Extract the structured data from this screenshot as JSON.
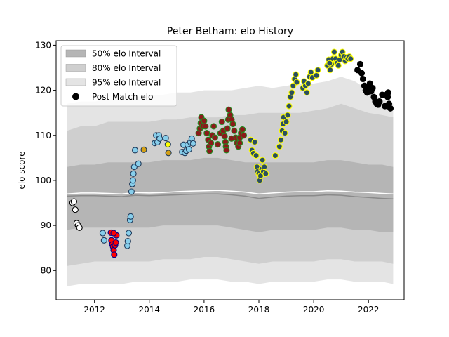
{
  "chart_data": {
    "type": "scatter",
    "title": "Peter Betham: elo History",
    "xlabel": "",
    "ylabel": "elo score",
    "xlim": [
      2010.6,
      2023.3
    ],
    "ylim": [
      73.5,
      131
    ],
    "x_ticks": [
      2012,
      2014,
      2016,
      2018,
      2020,
      2022
    ],
    "y_ticks": [
      80,
      90,
      100,
      110,
      120,
      130
    ],
    "legend": {
      "placement": "top-left",
      "entries": [
        "50% elo Interval",
        "80% elo Interval",
        "95% elo Interval",
        "Post Match elo"
      ]
    },
    "bands": {
      "x": [
        2011.0,
        2011.5,
        2012.0,
        2012.5,
        2013.0,
        2013.5,
        2014.0,
        2014.5,
        2015.0,
        2015.5,
        2016.0,
        2016.5,
        2017.0,
        2017.5,
        2018.0,
        2018.5,
        2019.0,
        2019.5,
        2020.0,
        2020.5,
        2021.0,
        2021.5,
        2022.0,
        2022.5,
        2022.9
      ],
      "p95_hi": [
        117,
        117.5,
        117.5,
        118,
        118.5,
        118.5,
        119,
        119,
        119.5,
        119.5,
        120,
        120,
        120,
        120.5,
        121,
        120.5,
        121,
        121.5,
        121.5,
        122,
        123,
        122,
        120,
        118,
        117
      ],
      "p80_hi": [
        111,
        112,
        112,
        113,
        113,
        113,
        113,
        113.5,
        113.5,
        114,
        114,
        114,
        114.5,
        114.5,
        115,
        115,
        115,
        115,
        115.5,
        116,
        117,
        116,
        115,
        114.5,
        114
      ],
      "p50_hi": [
        103,
        103.5,
        103.5,
        104,
        104,
        104,
        104,
        104.5,
        104.5,
        104.5,
        105,
        105,
        104.5,
        104,
        104,
        104,
        104,
        104,
        104,
        104.5,
        104.5,
        104,
        103.5,
        103.5,
        103
      ],
      "median": [
        97,
        97.2,
        97.2,
        97.1,
        97.0,
        97.3,
        97.2,
        97.3,
        97.5,
        97.6,
        97.7,
        97.8,
        97.6,
        97.4,
        97.0,
        97.2,
        97.4,
        97.5,
        97.5,
        97.7,
        97.6,
        97.4,
        97.3,
        97.1,
        97.0
      ],
      "mean": [
        96.5,
        96.6,
        96.6,
        96.5,
        96.4,
        96.7,
        96.6,
        96.7,
        96.8,
        96.9,
        97.0,
        97.0,
        96.8,
        96.5,
        96.0,
        96.3,
        96.5,
        96.6,
        96.6,
        96.8,
        96.7,
        96.4,
        96.2,
        96.0,
        95.9
      ],
      "p50_lo": [
        89,
        89.5,
        89.5,
        89.5,
        89.5,
        89.5,
        89.5,
        90,
        90,
        90,
        90,
        90,
        89.5,
        89,
        88.5,
        89,
        89,
        89,
        89,
        89.5,
        89.5,
        89,
        89,
        88.5,
        88.5
      ],
      "p80_lo": [
        81,
        81.5,
        82,
        82,
        82,
        82,
        82,
        82.5,
        82.5,
        82.5,
        83,
        83,
        82.5,
        82,
        81.5,
        82,
        82,
        82,
        82,
        82.5,
        82.5,
        82,
        82,
        82,
        81.5
      ],
      "p95_lo": [
        76.5,
        77,
        77,
        77,
        77,
        77.5,
        77.5,
        77.5,
        77.5,
        78,
        78,
        78,
        77.5,
        77.5,
        77,
        77.5,
        77.5,
        77.5,
        77.5,
        78,
        78,
        77.5,
        77.5,
        77.5,
        77
      ]
    },
    "series": [
      {
        "face": "#ffffff",
        "edge": "#000000",
        "points": [
          [
            2011.2,
            95.0
          ],
          [
            2011.25,
            95.3
          ],
          [
            2011.3,
            93.5
          ],
          [
            2011.35,
            90.5
          ],
          [
            2011.4,
            90.0
          ],
          [
            2011.45,
            89.5
          ]
        ]
      },
      {
        "face": "#87ceeb",
        "edge": "#1f3a5a",
        "points": [
          [
            2012.3,
            88.3
          ],
          [
            2012.35,
            86.7
          ],
          [
            2013.2,
            85.5
          ],
          [
            2013.25,
            88.3
          ],
          [
            2013.22,
            86.5
          ],
          [
            2013.3,
            91.2
          ],
          [
            2013.32,
            92.0
          ],
          [
            2013.35,
            97.5
          ],
          [
            2013.38,
            99.2
          ],
          [
            2013.4,
            100.0
          ],
          [
            2013.42,
            101.5
          ],
          [
            2013.45,
            103.0
          ],
          [
            2013.48,
            106.7
          ],
          [
            2013.6,
            103.7
          ],
          [
            2014.2,
            108.3
          ],
          [
            2014.25,
            110.0
          ],
          [
            2014.3,
            108.5
          ],
          [
            2014.35,
            110.0
          ],
          [
            2014.38,
            109.3
          ],
          [
            2014.6,
            109.4
          ],
          [
            2015.2,
            106.3
          ],
          [
            2015.25,
            107.9
          ],
          [
            2015.3,
            106.1
          ],
          [
            2015.35,
            106.6
          ],
          [
            2015.4,
            107.9
          ],
          [
            2015.45,
            106.9
          ],
          [
            2015.5,
            108.5
          ],
          [
            2015.55,
            109.3
          ],
          [
            2015.6,
            108.2
          ]
        ]
      },
      {
        "face": "#ff0000",
        "edge": "#00008b",
        "points": [
          [
            2012.6,
            88.4
          ],
          [
            2012.62,
            86.7
          ],
          [
            2012.65,
            85.8
          ],
          [
            2012.68,
            85.3
          ],
          [
            2012.7,
            84.5
          ],
          [
            2012.72,
            83.5
          ],
          [
            2012.75,
            85.6
          ],
          [
            2012.78,
            86.2
          ],
          [
            2012.8,
            87.8
          ],
          [
            2012.7,
            88.3
          ]
        ]
      },
      {
        "face": "#d4a017",
        "edge": "#1f3a5a",
        "points": [
          [
            2013.8,
            106.8
          ],
          [
            2014.7,
            106.1
          ]
        ]
      },
      {
        "face": "#ffff00",
        "edge": "#1f3a5a",
        "points": [
          [
            2014.68,
            108.0
          ]
        ]
      },
      {
        "face": "#8b1a1a",
        "edge": "#228b22",
        "points": [
          [
            2015.8,
            110.5
          ],
          [
            2015.85,
            111.5
          ],
          [
            2015.88,
            112.7
          ],
          [
            2015.9,
            114.0
          ],
          [
            2015.95,
            112.0
          ],
          [
            2016.0,
            113.2
          ],
          [
            2016.05,
            112.0
          ],
          [
            2016.1,
            110.5
          ],
          [
            2016.15,
            109.0
          ],
          [
            2016.18,
            107.5
          ],
          [
            2016.2,
            106.5
          ],
          [
            2016.25,
            108.3
          ],
          [
            2016.3,
            110.0
          ],
          [
            2016.35,
            112.0
          ],
          [
            2016.4,
            109.5
          ],
          [
            2016.5,
            108.0
          ],
          [
            2016.6,
            110.5
          ],
          [
            2016.7,
            111.0
          ],
          [
            2016.75,
            109.8
          ],
          [
            2016.78,
            108.5
          ],
          [
            2016.8,
            107.5
          ],
          [
            2016.82,
            106.7
          ],
          [
            2016.85,
            111.5
          ],
          [
            2016.88,
            113.5
          ],
          [
            2016.9,
            115.7
          ],
          [
            2016.95,
            114.5
          ],
          [
            2017.0,
            113.5
          ],
          [
            2017.05,
            112.5
          ],
          [
            2017.1,
            111.0
          ],
          [
            2017.15,
            109.5
          ],
          [
            2017.2,
            108.3
          ],
          [
            2017.25,
            107.5
          ],
          [
            2017.3,
            109.5
          ],
          [
            2017.35,
            110.5
          ],
          [
            2017.4,
            111.3
          ],
          [
            2017.45,
            110.0
          ],
          [
            2016.65,
            113.0
          ],
          [
            2017.0,
            109.3
          ],
          [
            2017.3,
            108.3
          ]
        ]
      },
      {
        "face": "#2b4f5f",
        "edge": "#ffff00",
        "points": [
          [
            2017.7,
            109.0
          ],
          [
            2017.75,
            106.7
          ],
          [
            2017.8,
            106.0
          ],
          [
            2017.85,
            108.5
          ],
          [
            2017.9,
            105.5
          ],
          [
            2017.93,
            103.0
          ],
          [
            2017.96,
            102.0
          ],
          [
            2018.0,
            101.5
          ],
          [
            2018.03,
            100.0
          ],
          [
            2018.06,
            101.0
          ],
          [
            2018.1,
            102.5
          ],
          [
            2018.13,
            104.5
          ],
          [
            2018.16,
            102.0
          ],
          [
            2018.2,
            103.0
          ],
          [
            2018.25,
            101.5
          ],
          [
            2018.6,
            105.5
          ],
          [
            2018.75,
            107.5
          ],
          [
            2018.8,
            109.0
          ],
          [
            2018.85,
            111.0
          ],
          [
            2018.88,
            112.5
          ],
          [
            2018.9,
            114.0
          ],
          [
            2018.95,
            110.5
          ],
          [
            2019.0,
            113.0
          ],
          [
            2019.05,
            114.5
          ],
          [
            2019.1,
            116.5
          ],
          [
            2019.15,
            118.5
          ],
          [
            2019.2,
            119.5
          ],
          [
            2019.25,
            121.0
          ],
          [
            2019.3,
            122.5
          ],
          [
            2019.35,
            123.5
          ],
          [
            2019.38,
            121.8
          ],
          [
            2019.6,
            120.5
          ],
          [
            2019.65,
            122.0
          ],
          [
            2019.7,
            121.0
          ],
          [
            2019.75,
            119.5
          ],
          [
            2019.8,
            121.5
          ],
          [
            2019.85,
            123.0
          ],
          [
            2019.9,
            124.0
          ],
          [
            2019.95,
            122.8
          ],
          [
            2020.1,
            123.3
          ],
          [
            2020.15,
            124.5
          ],
          [
            2020.5,
            125.5
          ],
          [
            2020.55,
            126.8
          ],
          [
            2020.6,
            124.5
          ],
          [
            2020.65,
            125.8
          ],
          [
            2020.7,
            127.0
          ],
          [
            2020.75,
            128.5
          ],
          [
            2020.8,
            127.0
          ],
          [
            2020.85,
            126.0
          ],
          [
            2020.9,
            125.5
          ],
          [
            2020.95,
            126.8
          ],
          [
            2021.0,
            127.8
          ],
          [
            2021.05,
            128.5
          ],
          [
            2021.1,
            127.5
          ],
          [
            2021.15,
            126.5
          ],
          [
            2021.2,
            127.3
          ],
          [
            2021.25,
            127.0
          ],
          [
            2021.3,
            127.5
          ],
          [
            2021.35,
            127.0
          ],
          [
            2020.58,
            126.0
          ]
        ]
      },
      {
        "face": "#000000",
        "edge": "#000000",
        "points": [
          [
            2021.6,
            124.5
          ],
          [
            2021.7,
            125.8
          ],
          [
            2021.75,
            123.8
          ],
          [
            2021.8,
            122.5
          ],
          [
            2021.85,
            121.0
          ],
          [
            2021.9,
            120.0
          ],
          [
            2021.95,
            119.5
          ],
          [
            2022.0,
            120.5
          ],
          [
            2022.05,
            121.5
          ],
          [
            2022.1,
            119.8
          ],
          [
            2022.15,
            120.5
          ],
          [
            2022.2,
            118.5
          ],
          [
            2022.25,
            117.5
          ],
          [
            2022.3,
            117.0
          ],
          [
            2022.35,
            116.8
          ],
          [
            2022.4,
            117.5
          ],
          [
            2022.5,
            119.0
          ],
          [
            2022.6,
            116.5
          ],
          [
            2022.65,
            119.0
          ],
          [
            2022.7,
            118.5
          ],
          [
            2022.75,
            117.0
          ],
          [
            2022.8,
            116.0
          ],
          [
            2022.72,
            119.5
          ]
        ]
      }
    ]
  }
}
